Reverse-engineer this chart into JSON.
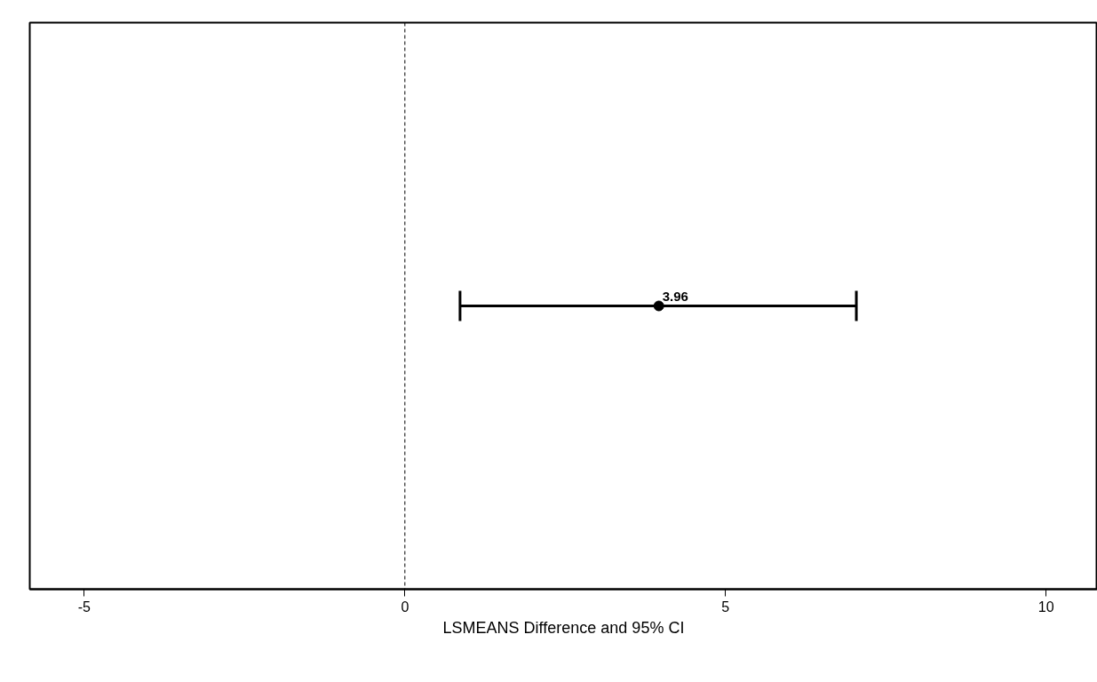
{
  "chart_data": {
    "type": "scatter",
    "orientation": "horizontal",
    "xlabel": "LSMEANS Difference and 95% CI",
    "categories": [
      null
    ],
    "values": [
      3.96
    ],
    "errors": [
      [
        0.86,
        7.04
      ]
    ],
    "color": "#000000",
    "marker": "circle",
    "data_labels": true,
    "xlim": [
      -5.85,
      10.8
    ],
    "xticks": [
      -5,
      0,
      5,
      10
    ],
    "tick_labels": "x",
    "grid": false,
    "ref_lines": [
      {
        "axis": "x",
        "value": 0,
        "line_style": "dashed",
        "color": "#000000"
      }
    ]
  }
}
